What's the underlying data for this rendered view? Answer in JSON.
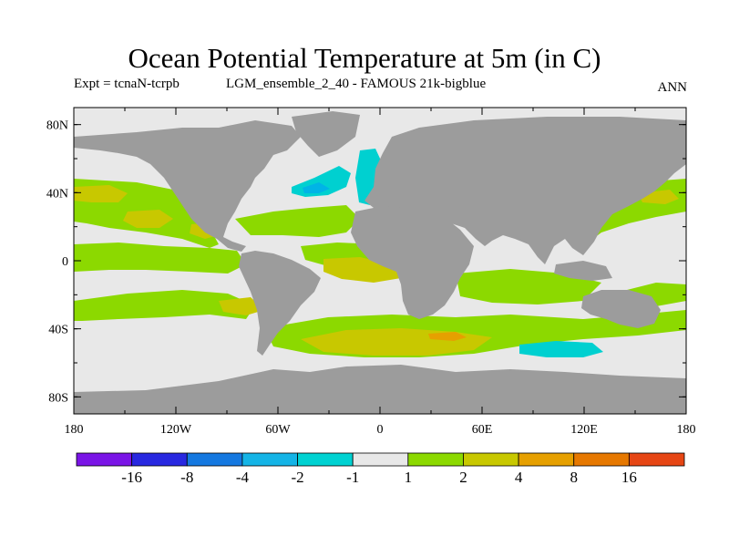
{
  "header": {
    "title": "Ocean Potential Temperature at 5m (in C)",
    "expt": "Expt = tcnaN-tcrpb",
    "run": "LGM_ensemble_2_40 - FAMOUS 21k-bigblue",
    "period": "ANN"
  },
  "map": {
    "projection": "equirectangular",
    "lon_range": [
      -180,
      180
    ],
    "lat_range": [
      -90,
      90
    ],
    "lat_ticks": [
      "80N",
      "40N",
      "0",
      "40S",
      "80S"
    ],
    "lon_ticks": [
      "180",
      "120W",
      "60W",
      "0",
      "60E",
      "120E",
      "180"
    ],
    "colors": {
      "land": "#9c9c9c",
      "ocean_neutral": "#e8e8e8",
      "warm_1_2": "#8cd900",
      "warm_2_4": "#c8c800",
      "warm_4_8": "#e6a000",
      "cool_m2_m1": "#00d0d0",
      "cool_m4_m2": "#00b4e6"
    }
  },
  "colorbar": {
    "colors": [
      "#7a14e6",
      "#2828e0",
      "#1478e0",
      "#14b4e6",
      "#00d2d2",
      "#e8e8e8",
      "#8cd900",
      "#c8c800",
      "#e6a000",
      "#e67800",
      "#e64614"
    ],
    "labels": [
      "-16",
      "-8",
      "-4",
      "-2",
      "-1",
      "1",
      "2",
      "4",
      "8",
      "16"
    ]
  }
}
